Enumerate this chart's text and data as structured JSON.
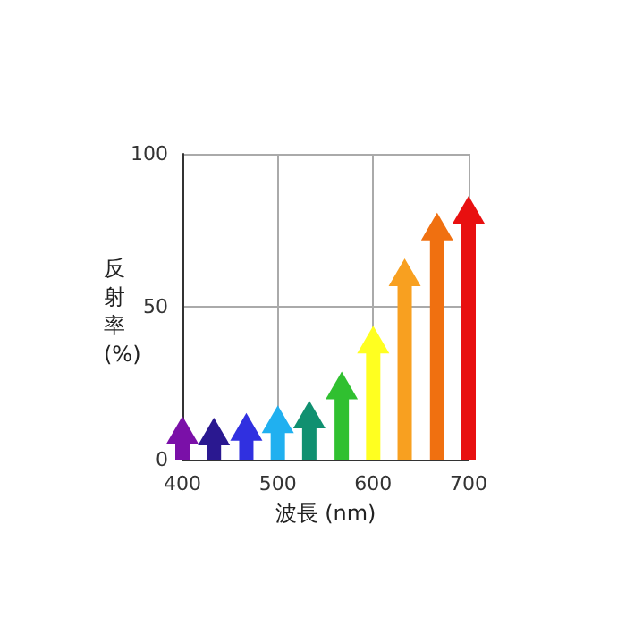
{
  "chart_data": {
    "type": "bar",
    "xlabel": "波長 (nm)",
    "ylabel": "反射率 (%)",
    "x": [
      400,
      433,
      467,
      500,
      533,
      567,
      600,
      633,
      667,
      700
    ],
    "values": [
      5.5,
      5,
      6.5,
      9,
      10.5,
      20,
      35,
      57,
      72,
      77.5
    ],
    "colors": [
      "#7a10a8",
      "#2a1890",
      "#3030e0",
      "#20b0f0",
      "#109070",
      "#30c030",
      "#ffff20",
      "#f8a020",
      "#f07010",
      "#e81010"
    ],
    "xlim": [
      400,
      700
    ],
    "xticks": [
      400,
      500,
      600,
      700
    ],
    "ylim": [
      0,
      100
    ],
    "yticks": [
      0,
      50,
      100
    ],
    "grid": true
  }
}
